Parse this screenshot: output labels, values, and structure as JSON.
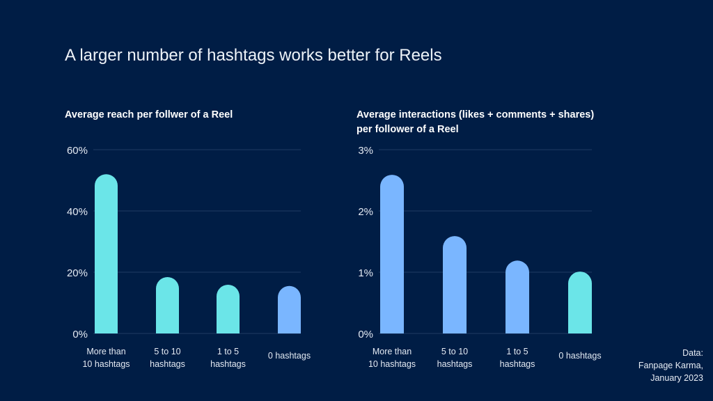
{
  "title": "A larger number of hashtags works better for Reels",
  "source": [
    "Data:",
    "Fanpage Karma,",
    "January 2023"
  ],
  "colors": {
    "background": "#001d45",
    "cyan": "#6be5e8",
    "blue": "#7ab6ff",
    "grid": "#1f3a63"
  },
  "chart_data": [
    {
      "type": "bar",
      "title": "Average reach per follwer of a Reel",
      "categories": [
        [
          "More than",
          "10 hashtags"
        ],
        [
          "5 to 10",
          "hashtags"
        ],
        [
          "1 to 5",
          "hashtags"
        ],
        [
          "0 hashtags"
        ]
      ],
      "values": [
        52,
        18.4,
        15.9,
        15.5
      ],
      "bar_colors": [
        "cyan",
        "cyan",
        "cyan",
        "blue"
      ],
      "unit": "%",
      "ylim": [
        0,
        60
      ],
      "yticks": [
        0,
        20,
        40,
        60
      ],
      "ytick_labels": [
        "0%",
        "20%",
        "40%",
        "60%"
      ],
      "grid": true
    },
    {
      "type": "bar",
      "title": "Average interactions (likes + comments + shares) per follower of a Reel",
      "title_lines": [
        "Average interactions (likes + comments + shares)",
        "per follower of a Reel"
      ],
      "categories": [
        [
          "More than",
          "10 hashtags"
        ],
        [
          "5 to 10",
          "hashtags"
        ],
        [
          "1 to 5",
          "hashtags"
        ],
        [
          "0 hashtags"
        ]
      ],
      "values": [
        2.59,
        1.59,
        1.19,
        1.01
      ],
      "bar_colors": [
        "blue",
        "blue",
        "blue",
        "cyan"
      ],
      "unit": "%",
      "ylim": [
        0,
        3
      ],
      "yticks": [
        0,
        1,
        2,
        3
      ],
      "ytick_labels": [
        "0%",
        "1%",
        "2%",
        "3%"
      ],
      "grid": true
    }
  ]
}
